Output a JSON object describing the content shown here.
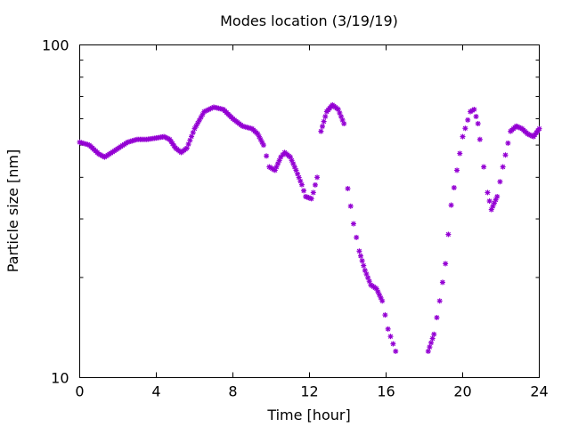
{
  "chart_data": {
    "type": "scatter",
    "title": "Modes location (3/19/19)",
    "xlabel": "Time [hour]",
    "ylabel": "Particle size [nm]",
    "xlim": [
      0,
      24
    ],
    "ylim": [
      10,
      100
    ],
    "yscale": "log",
    "grid": false,
    "legend": "none",
    "x_ticks": [
      0,
      4,
      8,
      12,
      16,
      20,
      24
    ],
    "x_tick_labels": [
      "0",
      "4",
      "8",
      "12",
      "16",
      "20",
      "24"
    ],
    "y_tick_labels": [
      "10",
      "100"
    ],
    "marker_color": "#9400d3",
    "marker": "asterisk",
    "anchors": {
      "x": [
        0,
        0.5,
        1,
        1.3,
        1.8,
        2.5,
        3,
        3.5,
        4,
        4.4,
        4.7,
        5,
        5.3,
        5.6,
        6,
        6.5,
        7,
        7.5,
        8,
        8.5,
        9,
        9.3,
        9.6,
        9.9,
        10.2,
        10.5,
        10.7,
        11,
        11.3,
        11.6,
        11.8,
        12.1,
        12.2,
        12.4,
        12.6,
        12.9,
        13.2,
        13.5,
        13.8,
        14,
        14.3,
        14.6,
        14.9,
        15.2,
        15.5,
        15.8,
        16.1,
        16.5,
        18.2,
        18.5,
        18.8,
        19.1,
        19.4,
        19.7,
        20,
        20.4,
        20.6,
        20.8,
        20.9,
        21.1,
        21.3,
        21.5,
        21.8,
        22.1,
        22.5,
        22.8,
        23.1,
        23.4,
        23.7,
        24
      ],
      "y": [
        51,
        50,
        47,
        46,
        48,
        51,
        52,
        52,
        52.5,
        53,
        52,
        49,
        47.5,
        49,
        56,
        63,
        65,
        64,
        60,
        57,
        56,
        54,
        50,
        43,
        42,
        46,
        47.5,
        46,
        42,
        38,
        35,
        34.5,
        36,
        40,
        55,
        63,
        66,
        64,
        58,
        37,
        29,
        24,
        21,
        19,
        18.5,
        17,
        14,
        12,
        12,
        13.5,
        17,
        22,
        33,
        42,
        53,
        63,
        64,
        58,
        52,
        43,
        36,
        32,
        35,
        43,
        55,
        57,
        56,
        54,
        53,
        56
      ]
    }
  }
}
